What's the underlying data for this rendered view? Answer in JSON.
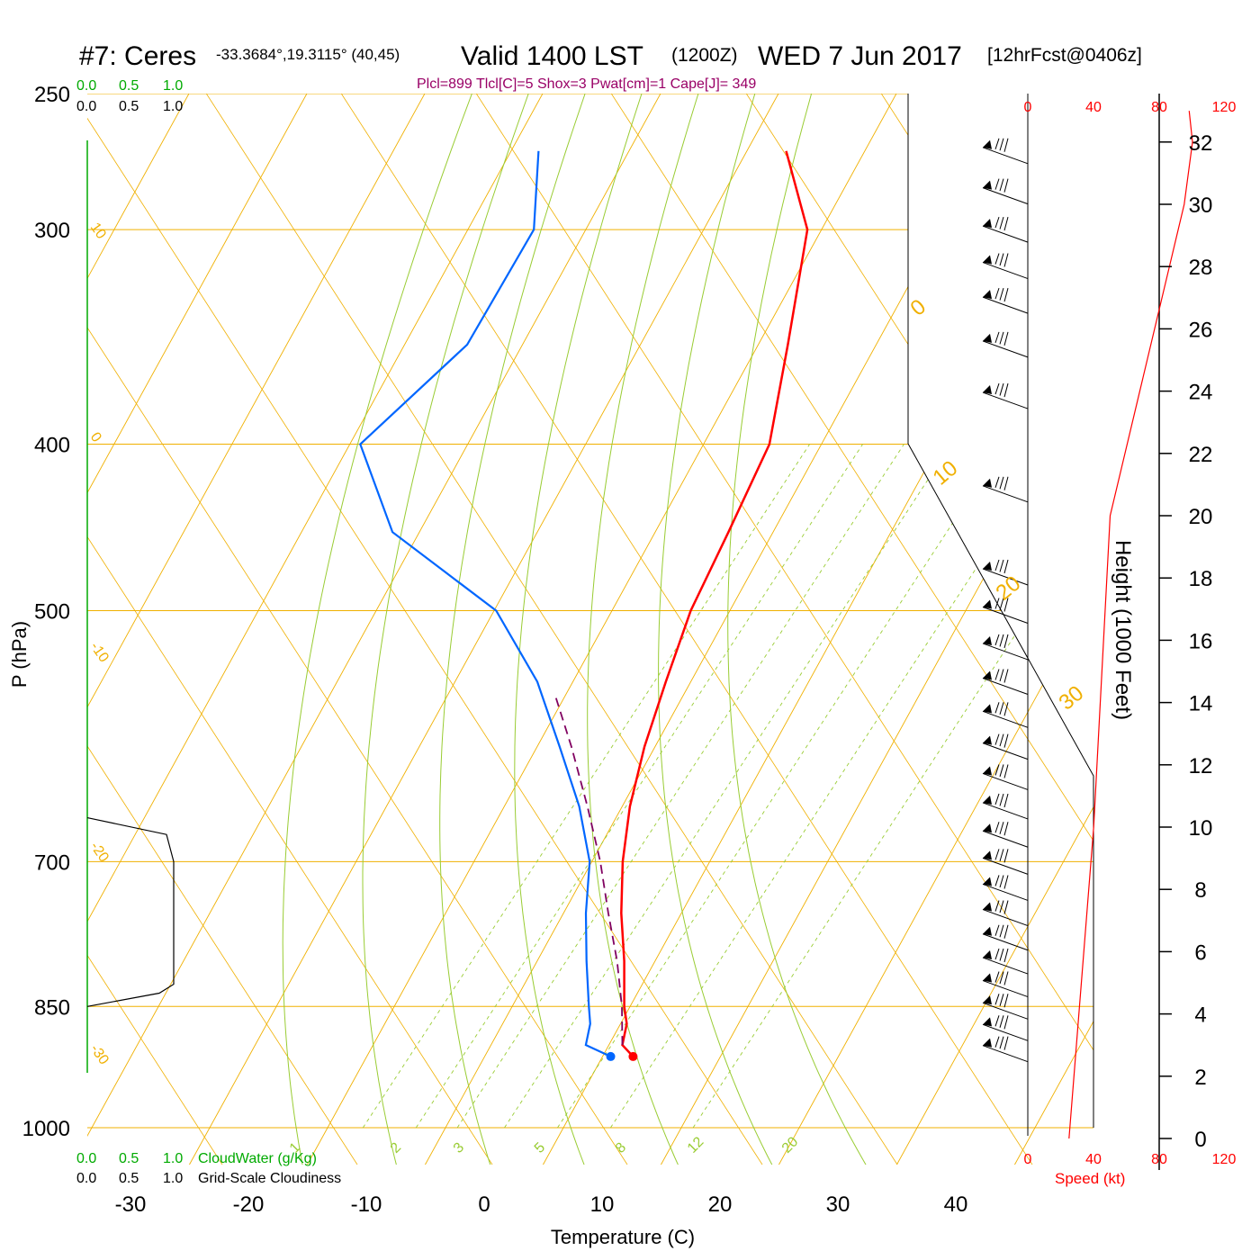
{
  "header": {
    "station": "#7: Ceres",
    "coords": "-33.3684°,19.3115° (40,45)",
    "valid": "Valid 1400 LST",
    "zulu": "(1200Z)",
    "date": "WED 7 Jun 2017",
    "fcst": "[12hrFcst@0406z]",
    "indices": "Plcl=899 Tlcl[C]=5 Shox=3 Pwat[cm]=1 Cape[J]= 349"
  },
  "colors": {
    "temperature": "#ff0000",
    "dewpoint": "#0066ff",
    "parcel": "#800060",
    "isobar_isotherm": "#f0b000",
    "mixing_ratio": "#99cc33",
    "cloudwater": "#00aa00",
    "speed": "#ff0000"
  },
  "labels": {
    "y_axis": "P (hPa)",
    "x_axis": "Temperature (C)",
    "height_axis": "Height (1000 Feet)",
    "cloudwater": "CloudWater (g/Kg)",
    "cloudiness": "Grid-Scale Cloudiness",
    "speed": "Speed (kt)"
  },
  "scales": {
    "cloudwater_ticks": [
      "0.0",
      "0.5",
      "1.0"
    ],
    "cloudiness_ticks": [
      "0.0",
      "0.5",
      "1.0"
    ],
    "speed_ticks": [
      "0",
      "40",
      "80",
      "120"
    ]
  },
  "chart_data": {
    "type": "line",
    "pressure_ticks": [
      "250",
      "300",
      "400",
      "500",
      "700",
      "850",
      "1000"
    ],
    "temperature_ticks": [
      "-30",
      "-20",
      "-10",
      "0",
      "10",
      "20",
      "30",
      "40"
    ],
    "height_ticks": [
      "0",
      "2",
      "4",
      "6",
      "8",
      "10",
      "12",
      "14",
      "16",
      "18",
      "20",
      "22",
      "24",
      "26",
      "28",
      "30",
      "32"
    ],
    "skewed_isotherm_labels": [
      "10",
      "0",
      "-10",
      "-20",
      "-30"
    ],
    "upper_isotherm_labels": [
      "0",
      "10",
      "20",
      "30"
    ],
    "mixing_ratio_labels": [
      "1",
      "2",
      "3",
      "5",
      "8",
      "12",
      "20"
    ],
    "series": [
      {
        "name": "Temperature",
        "points": [
          [
            909,
            11.8
          ],
          [
            895,
            10.3
          ],
          [
            870,
            9.6
          ],
          [
            850,
            8.5
          ],
          [
            800,
            6.2
          ],
          [
            750,
            3.5
          ],
          [
            700,
            1.0
          ],
          [
            650,
            -1.2
          ],
          [
            600,
            -3.0
          ],
          [
            550,
            -4.5
          ],
          [
            500,
            -6.0
          ],
          [
            450,
            -6.8
          ],
          [
            400,
            -7.8
          ],
          [
            350,
            -11.3
          ],
          [
            300,
            -15.5
          ],
          [
            270,
            -21.3
          ]
        ]
      },
      {
        "name": "Dewpoint",
        "points": [
          [
            909,
            9.9
          ],
          [
            895,
            7.2
          ],
          [
            870,
            6.5
          ],
          [
            850,
            5.5
          ],
          [
            800,
            3.0
          ],
          [
            750,
            0.5
          ],
          [
            700,
            -1.8
          ],
          [
            650,
            -5.5
          ],
          [
            600,
            -10.2
          ],
          [
            550,
            -15.4
          ],
          [
            500,
            -22.5
          ],
          [
            450,
            -35.3
          ],
          [
            400,
            -42.5
          ],
          [
            350,
            -38.5
          ],
          [
            300,
            -38.7
          ],
          [
            270,
            -42.3
          ]
        ]
      },
      {
        "name": "Parcel",
        "points": [
          [
            895,
            10.3
          ],
          [
            850,
            8.3
          ],
          [
            800,
            5.6
          ],
          [
            750,
            2.4
          ],
          [
            700,
            -0.9
          ],
          [
            650,
            -4.8
          ],
          [
            600,
            -9.2
          ],
          [
            560,
            -13.2
          ]
        ]
      }
    ],
    "cloudiness_profile": [
      [
        660,
        0.0
      ],
      [
        675,
        0.88
      ],
      [
        700,
        0.96
      ],
      [
        825,
        0.96
      ],
      [
        835,
        0.8
      ],
      [
        850,
        0.0
      ]
    ],
    "wind_speed_profile": [
      [
        0,
        25
      ],
      [
        10,
        40
      ],
      [
        20,
        50
      ],
      [
        30,
        95
      ],
      [
        32,
        100
      ],
      [
        33,
        98
      ]
    ],
    "wind_levels_hpa": [
      270,
      285,
      300,
      315,
      330,
      350,
      375,
      425,
      475,
      500,
      525,
      550,
      575,
      600,
      625,
      650,
      675,
      700,
      725,
      750,
      775,
      800,
      825,
      850,
      875,
      900
    ],
    "x_range": [
      -35,
      40
    ],
    "p_range": [
      1000,
      250
    ],
    "skew_note": "log-p skew-T; isotherms 45° skewed",
    "grid": true
  }
}
